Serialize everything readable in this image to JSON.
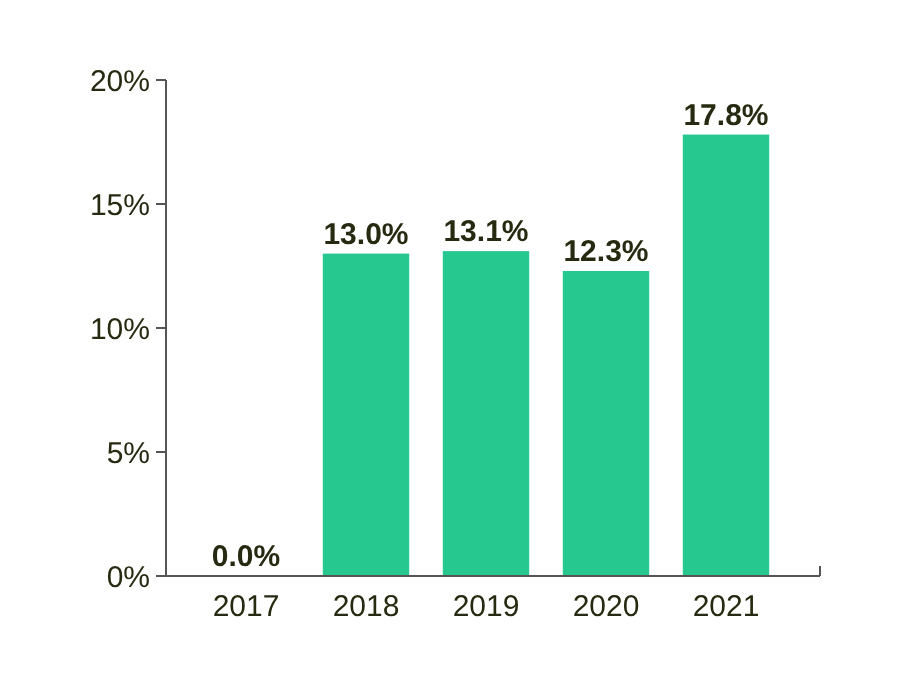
{
  "chart_data": {
    "type": "bar",
    "categories": [
      "2017",
      "2018",
      "2019",
      "2020",
      "2021"
    ],
    "values": [
      0,
      13.0,
      13.1,
      12.3,
      17.8
    ],
    "value_labels": [
      "0.0%",
      "13.0%",
      "13.1%",
      "12.3%",
      "17.8%"
    ],
    "color": "#26c88f",
    "ylim": [
      0,
      20
    ],
    "yticks": [
      {
        "value": 0,
        "label": "0%"
      },
      {
        "value": 5,
        "label": "5%"
      },
      {
        "value": 10,
        "label": "10%"
      },
      {
        "value": 15,
        "label": "15%"
      },
      {
        "value": 20,
        "label": "20%"
      }
    ],
    "grid": false
  }
}
